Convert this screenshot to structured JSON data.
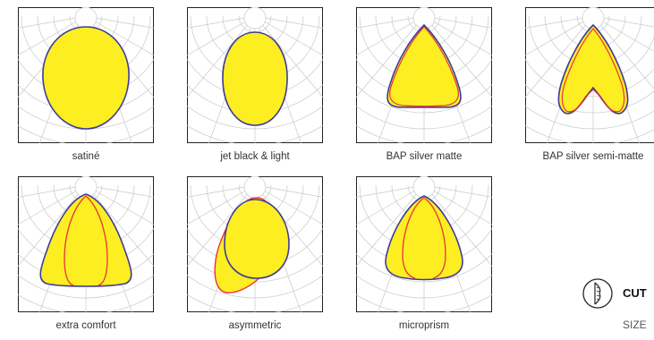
{
  "diagrams": [
    {
      "label": "satiné",
      "shape": "ellipse"
    },
    {
      "label": "jet black & light",
      "shape": "ellipse-narrow"
    },
    {
      "label": "BAP silver matte",
      "shape": "bell"
    },
    {
      "label": "BAP silver semi-matte",
      "shape": "batwing"
    },
    {
      "label": "extra comfort",
      "shape": "bell-wide"
    },
    {
      "label": "asymmetric",
      "shape": "asymmetric"
    },
    {
      "label": "microprism",
      "shape": "teardrop"
    }
  ],
  "side": {
    "title": "CUT",
    "subtitle": "SIZE"
  },
  "colors": {
    "fill": "#fdee21",
    "outline_blue": "#3c3c9a",
    "outline_red": "#e8323c",
    "grid": "#c8c8c8"
  }
}
